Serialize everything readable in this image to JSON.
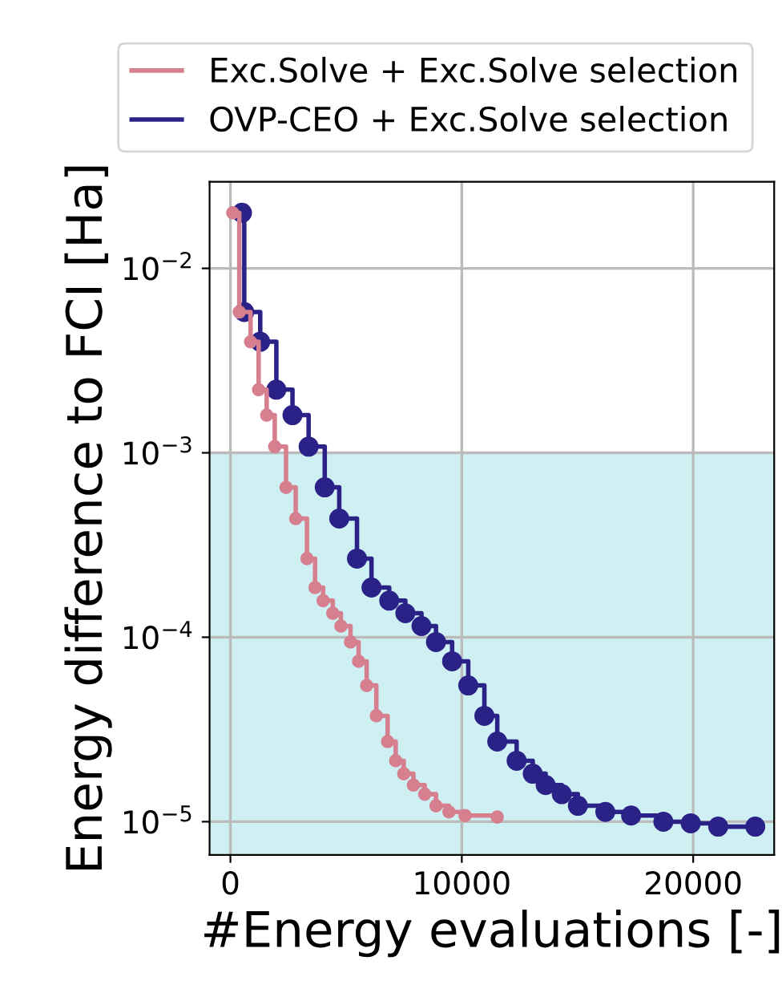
{
  "chart_data": {
    "type": "step",
    "xlabel": "#Energy evaluations [-]",
    "ylabel": "Energy difference to FCI [Ha]",
    "log": "y",
    "grid": true,
    "legend": "top",
    "marker": "circle",
    "line_style": "solid",
    "xlim": [
      -900,
      23500
    ],
    "ylim": [
      6.6e-06,
      0.0295
    ],
    "xticks": [
      0,
      10000,
      20000
    ],
    "yticks": [
      {
        "value": 1e-05,
        "label": "10$^{−5}$"
      },
      {
        "value": 0.0001,
        "label": "10$^{−4}$"
      },
      {
        "value": 0.001,
        "label": "10$^{−3}$"
      },
      {
        "value": 0.01,
        "label": "10$^{−2}$"
      }
    ],
    "bands": [
      {
        "axis": "y",
        "from": 6.6e-06,
        "to": 0.001,
        "color": "#cff0f3"
      }
    ],
    "series": [
      {
        "name": "Exc.Solve + Exc.Solve selection",
        "color": "#d57f8f",
        "x": [
          100,
          383,
          871,
          1220,
          1568,
          1916,
          2404,
          2822,
          3310,
          3659,
          4007,
          4425,
          4774,
          5192,
          5540,
          5889,
          6307,
          6794,
          7143,
          7491,
          7909,
          8397,
          8885,
          9443,
          10139,
          11533
        ],
        "values": [
          0.02,
          0.0058,
          0.004,
          0.0022,
          0.0016,
          0.00108,
          0.00065,
          0.00044,
          0.000267,
          0.000186,
          0.000158,
          0.000135,
          0.000115,
          9.42e-05,
          7.41e-05,
          5.48e-05,
          3.75e-05,
          2.72e-05,
          2.14e-05,
          1.82e-05,
          1.58e-05,
          1.41e-05,
          1.22e-05,
          1.13e-05,
          1.08e-05,
          1.06e-05
        ]
      },
      {
        "name": "OVP-CEO + Exc.Solve selection",
        "color": "#2b2288",
        "x": [
          500,
          599,
          1289,
          1986,
          2683,
          3380,
          4077,
          4704,
          5470,
          6098,
          6864,
          7561,
          8258,
          8885,
          9582,
          10279,
          10976,
          11533,
          12370,
          13066,
          13624,
          14321,
          15017,
          16202,
          17317,
          18711,
          19895,
          21080,
          22683
        ],
        "values": [
          0.02,
          0.0058,
          0.004,
          0.0022,
          0.0016,
          0.00108,
          0.00065,
          0.00044,
          0.000267,
          0.000186,
          0.000158,
          0.000135,
          0.000115,
          9.42e-05,
          7.41e-05,
          5.48e-05,
          3.75e-05,
          2.72e-05,
          2.14e-05,
          1.82e-05,
          1.58e-05,
          1.41e-05,
          1.22e-05,
          1.13e-05,
          1.08e-05,
          1e-05,
          9.8e-06,
          9.4e-06,
          9.4e-06
        ]
      }
    ]
  }
}
